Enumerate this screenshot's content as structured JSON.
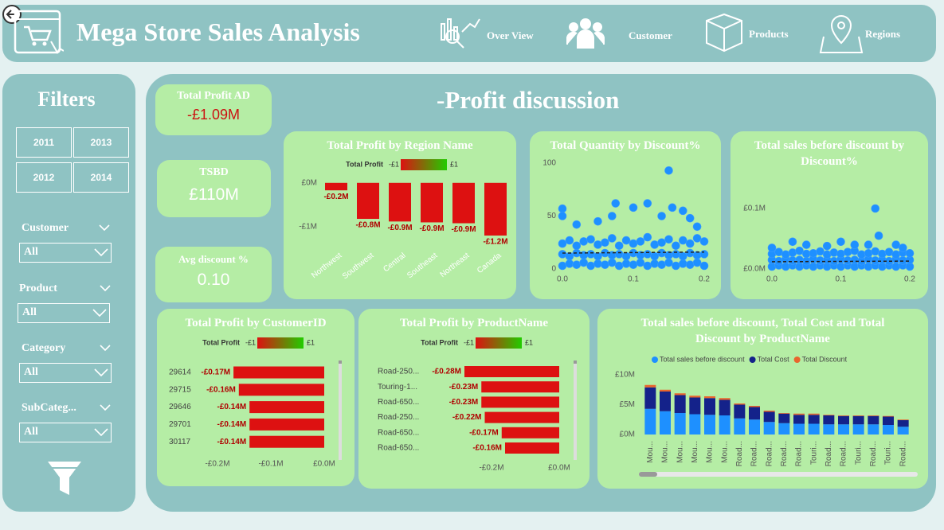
{
  "header": {
    "title": "Mega Store Sales Analysis",
    "nav": [
      "Over View",
      "Customer",
      "Products",
      "Regions"
    ]
  },
  "filters": {
    "title": "Filters",
    "years": [
      "2011",
      "2013",
      "2012",
      "2014"
    ],
    "slicers": [
      {
        "label": "Customer",
        "value": "All"
      },
      {
        "label": "Product",
        "value": "All"
      },
      {
        "label": "Category",
        "value": "All"
      },
      {
        "label": "SubCateg...",
        "value": "All"
      }
    ]
  },
  "kpis": [
    {
      "label": "Total Profit AD",
      "value": "-£1.09M"
    },
    {
      "label": "TSBD",
      "value": "£110M"
    },
    {
      "label": "Avg discount %",
      "value": "0.10"
    }
  ],
  "page_title": "-Profit discussion",
  "chart_data": [
    {
      "type": "bar",
      "orientation": "vertical",
      "title": "Total Profit by Region Name",
      "legend_title": "Total Profit",
      "legend_labels": [
        "-£1",
        "£1"
      ],
      "legend_colors": [
        "#dd1111",
        "#22cc00"
      ],
      "categories": [
        "Northwest",
        "Southwest",
        "Central",
        "Southeast",
        "Northeast",
        "Canada"
      ],
      "values": [
        -0.17,
        -0.82,
        -0.88,
        -0.9,
        -0.92,
        -1.2
      ],
      "value_labels": [
        "-£0.2M",
        "-£0.8M",
        "-£0.9M",
        "-£0.9M",
        "-£0.9M",
        "-£1.2M"
      ],
      "color": "#dd1111",
      "ylim": [
        -1.3,
        0.25
      ],
      "yticks": [
        {
          "value": 0,
          "label": "£0M"
        },
        {
          "value": -1,
          "label": "-£1M"
        }
      ]
    },
    {
      "type": "scatter",
      "title": "Total Quantity by Discount%",
      "color": "#1e90ff",
      "x": [
        0,
        0.01,
        0.02,
        0.03,
        0.04,
        0.05,
        0.06,
        0.07,
        0.08,
        0.09,
        0.1,
        0.11,
        0.12,
        0.13,
        0.14,
        0.15,
        0.16,
        0.17,
        0.18,
        0.19,
        0.2,
        0,
        0.01,
        0.02,
        0.03,
        0.04,
        0.05,
        0.06,
        0.07,
        0.08,
        0.09,
        0.1,
        0.11,
        0.12,
        0.13,
        0.14,
        0.15,
        0.16,
        0.17,
        0.18,
        0.19,
        0.2,
        0,
        0.01,
        0.02,
        0.03,
        0.04,
        0.05,
        0.06,
        0.07,
        0.08,
        0.09,
        0.1,
        0.11,
        0.12,
        0.13,
        0.14,
        0.15,
        0.16,
        0.17,
        0.18,
        0.19,
        0.2,
        0,
        0,
        0.02,
        0.05,
        0.07,
        0.075,
        0.1,
        0.12,
        0.14,
        0.15,
        0.155,
        0.17,
        0.18,
        0.19
      ],
      "y": [
        3,
        5,
        4,
        6,
        3,
        5,
        4,
        6,
        3,
        5,
        4,
        6,
        3,
        5,
        4,
        6,
        3,
        5,
        4,
        6,
        3,
        14,
        12,
        15,
        13,
        14,
        12,
        15,
        13,
        14,
        12,
        15,
        13,
        14,
        12,
        15,
        13,
        14,
        12,
        15,
        13,
        14,
        24,
        27,
        22,
        26,
        28,
        23,
        25,
        29,
        22,
        27,
        24,
        26,
        30,
        23,
        25,
        28,
        22,
        27,
        24,
        29,
        26,
        57,
        50,
        42,
        45,
        50,
        62,
        58,
        62,
        50,
        93,
        58,
        55,
        48,
        40
      ],
      "trend": {
        "x": [
          0,
          0.2
        ],
        "y": [
          15,
          16
        ]
      },
      "xlim": [
        0,
        0.2
      ],
      "ylim": [
        0,
        100
      ],
      "xticks": [
        {
          "value": 0,
          "label": "0.0"
        },
        {
          "value": 0.1,
          "label": "0.1"
        },
        {
          "value": 0.2,
          "label": "0.2"
        }
      ],
      "yticks": [
        0,
        50,
        100
      ]
    },
    {
      "type": "scatter",
      "title": "Total sales before discount by Discount%",
      "color": "#1e90ff",
      "x": [
        0,
        0.01,
        0.02,
        0.03,
        0.04,
        0.05,
        0.06,
        0.07,
        0.08,
        0.09,
        0.1,
        0.11,
        0.12,
        0.13,
        0.14,
        0.15,
        0.16,
        0.17,
        0.18,
        0.19,
        0.2,
        0,
        0.01,
        0.02,
        0.03,
        0.04,
        0.05,
        0.06,
        0.07,
        0.08,
        0.09,
        0.1,
        0.11,
        0.12,
        0.13,
        0.14,
        0.15,
        0.16,
        0.17,
        0.18,
        0.19,
        0.2,
        0,
        0.01,
        0.02,
        0.03,
        0.04,
        0.05,
        0.06,
        0.07,
        0.08,
        0.09,
        0.1,
        0.11,
        0.12,
        0.13,
        0.14,
        0.15,
        0.16,
        0.17,
        0.18,
        0.19,
        0.2,
        0,
        0.03,
        0.05,
        0.08,
        0.1,
        0.12,
        0.14,
        0.15,
        0.155,
        0.18,
        0.19
      ],
      "y": [
        0.004,
        0.006,
        0.004,
        0.006,
        0.004,
        0.006,
        0.004,
        0.006,
        0.004,
        0.006,
        0.004,
        0.006,
        0.004,
        0.006,
        0.004,
        0.006,
        0.004,
        0.006,
        0.004,
        0.006,
        0.004,
        0.015,
        0.013,
        0.016,
        0.014,
        0.015,
        0.013,
        0.016,
        0.014,
        0.015,
        0.013,
        0.016,
        0.014,
        0.015,
        0.013,
        0.016,
        0.014,
        0.015,
        0.013,
        0.016,
        0.014,
        0.015,
        0.025,
        0.028,
        0.024,
        0.027,
        0.03,
        0.025,
        0.026,
        0.029,
        0.024,
        0.027,
        0.025,
        0.028,
        0.03,
        0.024,
        0.026,
        0.029,
        0.025,
        0.028,
        0.024,
        0.027,
        0.026,
        0.035,
        0.045,
        0.04,
        0.038,
        0.045,
        0.04,
        0.04,
        0.1,
        0.055,
        0.04,
        0.035
      ],
      "trend": {
        "x": [
          0,
          0.2
        ],
        "y": [
          0.012,
          0.013
        ]
      },
      "xlim": [
        0,
        0.2
      ],
      "ylim": [
        0,
        0.17
      ],
      "xticks": [
        {
          "value": 0,
          "label": "0.0"
        },
        {
          "value": 0.1,
          "label": "0.1"
        },
        {
          "value": 0.2,
          "label": "0.2"
        }
      ],
      "yticks": [
        {
          "value": 0,
          "label": "£0.0M"
        },
        {
          "value": 0.1,
          "label": "£0.1M"
        }
      ]
    },
    {
      "type": "bar",
      "orientation": "horizontal",
      "title": "Total Profit by CustomerID",
      "legend_title": "Total Profit",
      "legend_labels": [
        "-£1",
        "£1"
      ],
      "legend_colors": [
        "#dd1111",
        "#22cc00"
      ],
      "categories": [
        "29614",
        "29715",
        "29646",
        "29701",
        "30117"
      ],
      "values": [
        -0.17,
        -0.16,
        -0.14,
        -0.14,
        -0.14
      ],
      "value_labels": [
        "-£0.17M",
        "-£0.16M",
        "-£0.14M",
        "-£0.14M",
        "-£0.14M"
      ],
      "color": "#dd1111",
      "xlim": [
        -0.2,
        0
      ],
      "xticks": [
        {
          "value": -0.2,
          "label": "-£0.2M"
        },
        {
          "value": -0.1,
          "label": "-£0.1M"
        },
        {
          "value": 0,
          "label": "£0.0M"
        }
      ]
    },
    {
      "type": "bar",
      "orientation": "horizontal",
      "title": "Total Profit by ProductName",
      "legend_title": "Total Profit",
      "legend_labels": [
        "-£1",
        "£1"
      ],
      "legend_colors": [
        "#dd1111",
        "#22cc00"
      ],
      "categories": [
        "Road-250...",
        "Touring-1...",
        "Road-650...",
        "Road-250...",
        "Road-650...",
        "Road-650..."
      ],
      "values": [
        -0.28,
        -0.23,
        -0.23,
        -0.22,
        -0.17,
        -0.16
      ],
      "value_labels": [
        "-£0.28M",
        "-£0.23M",
        "-£0.23M",
        "-£0.22M",
        "-£0.17M",
        "-£0.16M"
      ],
      "color": "#dd1111",
      "xlim": [
        -0.3,
        0
      ],
      "xticks": [
        {
          "value": -0.2,
          "label": "-£0.2M"
        },
        {
          "value": 0,
          "label": "£0.0M"
        }
      ]
    },
    {
      "type": "stacked_bar",
      "title": "Total sales before discount, Total Cost and Total Discount by ProductName",
      "categories": [
        "Mou...",
        "Mou...",
        "Mou...",
        "Mou...",
        "Mou...",
        "Mou...",
        "Road...",
        "Road...",
        "Road...",
        "Road...",
        "Road...",
        "Touri...",
        "Road...",
        "Road...",
        "Touri...",
        "Road...",
        "Touri...",
        "Road..."
      ],
      "series": [
        {
          "name": "Total sales before discount",
          "color": "#1e90ff",
          "values": [
            4.3,
            3.9,
            3.6,
            3.4,
            3.3,
            3.2,
            2.7,
            2.5,
            2.1,
            1.9,
            1.8,
            1.8,
            1.7,
            1.7,
            1.7,
            1.7,
            1.6,
            1.3
          ]
        },
        {
          "name": "Total Cost",
          "color": "#14228a",
          "values": [
            3.6,
            3.3,
            3.0,
            2.8,
            2.8,
            2.6,
            2.3,
            2.1,
            1.7,
            1.6,
            1.5,
            1.5,
            1.5,
            1.4,
            1.4,
            1.4,
            1.4,
            1.1
          ]
        },
        {
          "name": "Total Discount",
          "color": "#e8652d",
          "values": [
            0.4,
            0.3,
            0.3,
            0.3,
            0.3,
            0.3,
            0.2,
            0.2,
            0.2,
            0.1,
            0.2,
            0.2,
            0.1,
            0.1,
            0.1,
            0.1,
            0.1,
            0.1
          ]
        }
      ],
      "ylim": [
        0,
        10
      ],
      "yticks": [
        {
          "value": 0,
          "label": "£0M"
        },
        {
          "value": 5,
          "label": "£5M"
        },
        {
          "value": 10,
          "label": "£10M"
        }
      ]
    }
  ]
}
